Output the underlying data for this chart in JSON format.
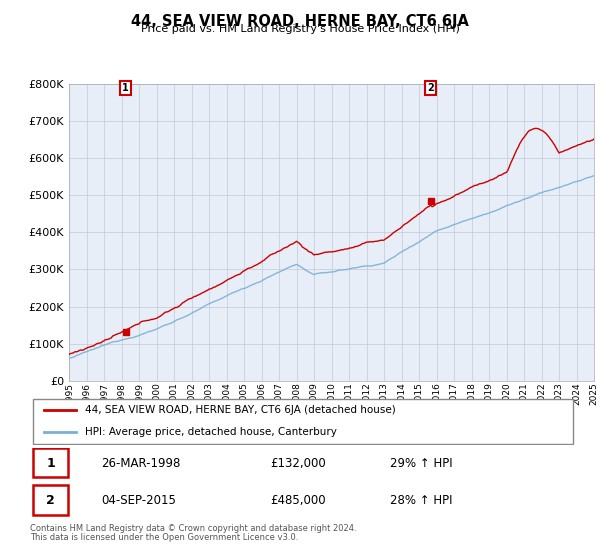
{
  "title": "44, SEA VIEW ROAD, HERNE BAY, CT6 6JA",
  "subtitle": "Price paid vs. HM Land Registry's House Price Index (HPI)",
  "legend_line1": "44, SEA VIEW ROAD, HERNE BAY, CT6 6JA (detached house)",
  "legend_line2": "HPI: Average price, detached house, Canterbury",
  "purchase1": {
    "label": "1",
    "date": "26-MAR-1998",
    "price": "£132,000",
    "hpi": "29% ↑ HPI",
    "year": 1998.23,
    "value": 132000
  },
  "purchase2": {
    "label": "2",
    "date": "04-SEP-2015",
    "price": "£485,000",
    "hpi": "28% ↑ HPI",
    "year": 2015.67,
    "value": 485000
  },
  "footer1": "Contains HM Land Registry data © Crown copyright and database right 2024.",
  "footer2": "This data is licensed under the Open Government Licence v3.0.",
  "red_color": "#cc0000",
  "blue_color": "#7ab0d4",
  "background_color": "#e8eef8",
  "grid_color": "#c0c8d8",
  "ylim": [
    0,
    800000
  ],
  "xlim": [
    1995,
    2025
  ],
  "yticks": [
    0,
    100000,
    200000,
    300000,
    400000,
    500000,
    600000,
    700000,
    800000
  ],
  "xticks": [
    1995,
    1996,
    1997,
    1998,
    1999,
    2000,
    2001,
    2002,
    2003,
    2004,
    2005,
    2006,
    2007,
    2008,
    2009,
    2010,
    2011,
    2012,
    2013,
    2014,
    2015,
    2016,
    2017,
    2018,
    2019,
    2020,
    2021,
    2022,
    2023,
    2024,
    2025
  ]
}
